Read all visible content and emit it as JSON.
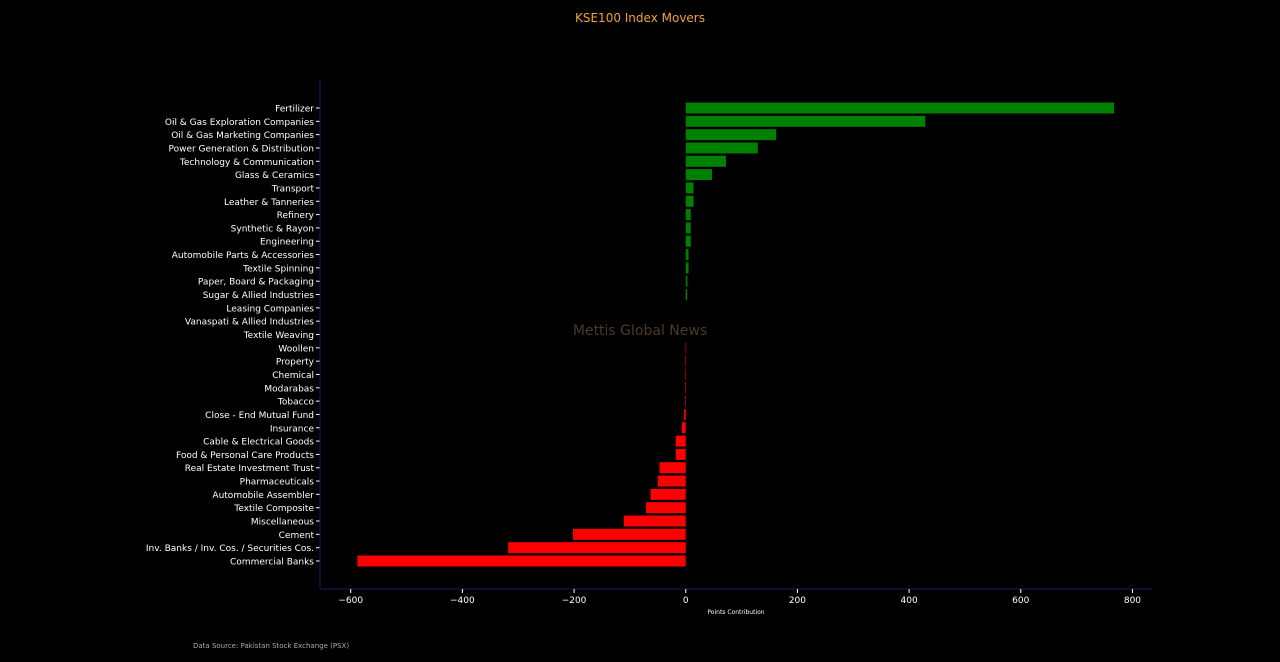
{
  "chart_data": {
    "type": "bar",
    "orientation": "horizontal",
    "title": "KSE100 Index Movers",
    "xlabel": "Points Contribution",
    "ylabel": "",
    "xlim": [
      -655,
      835
    ],
    "xticks": [
      -600,
      -400,
      -200,
      0,
      200,
      400,
      600,
      800
    ],
    "xtick_labels": [
      "−600",
      "−400",
      "−200",
      "0",
      "200",
      "400",
      "600",
      "800"
    ],
    "watermark": "Mettis Global News",
    "source": "Data Source: Pakistan Stock Exchange (PSX)",
    "colors": {
      "positive": "#008000",
      "negative": "#ff0000",
      "axis": "#1a1a6e",
      "title": "#f0a040"
    },
    "categories": [
      "Fertilizer",
      "Oil & Gas Exploration Companies",
      "Oil & Gas Marketing Companies",
      "Power Generation & Distribution",
      "Technology & Communication",
      "Glass & Ceramics",
      "Transport",
      "Leather & Tanneries",
      "Refinery",
      "Synthetic & Rayon",
      "Engineering",
      "Automobile Parts & Accessories",
      "Textile Spinning",
      "Paper, Board & Packaging",
      "Sugar & Allied Industries",
      "Leasing Companies",
      "Vanaspati & Allied Industries",
      "Textile Weaving",
      "Woollen",
      "Property",
      "Chemical",
      "Modarabas",
      "Tobacco",
      "Close - End Mutual Fund",
      "Insurance",
      "Cable & Electrical Goods",
      "Food & Personal Care Products",
      "Real Estate Investment Trust",
      "Pharmaceuticals",
      "Automobile Assembler",
      "Textile Composite",
      "Miscellaneous",
      "Cement",
      "Inv. Banks / Inv. Cos. / Securities Cos.",
      "Commercial Banks"
    ],
    "values": [
      767,
      429,
      162,
      129,
      72,
      47,
      14,
      14,
      9,
      9,
      9,
      5,
      5,
      3,
      2.5,
      0,
      0,
      0,
      -0.3,
      -0.5,
      -0.5,
      -0.7,
      -1,
      -3,
      -7,
      -18,
      -18,
      -47,
      -50,
      -63,
      -71,
      -111,
      -202,
      -318,
      -588
    ]
  }
}
